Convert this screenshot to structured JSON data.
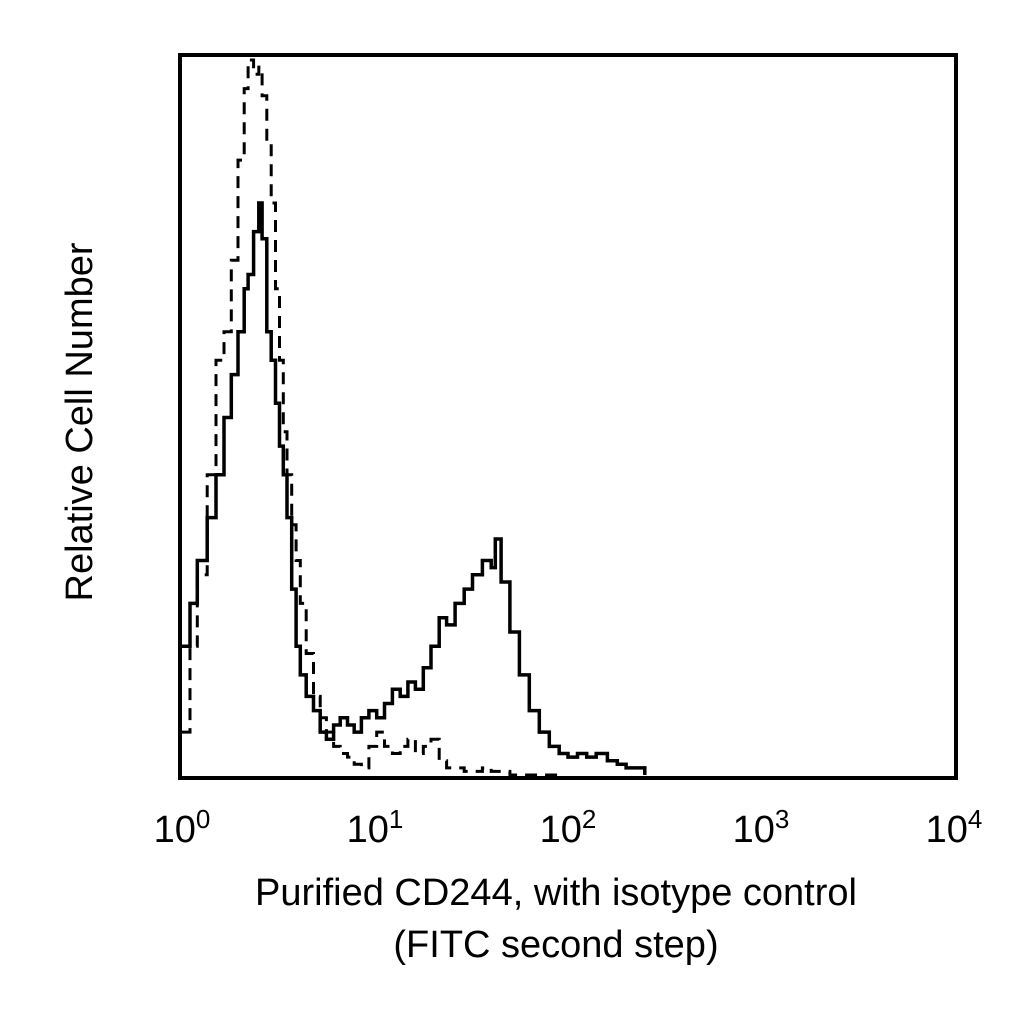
{
  "chart_data": {
    "type": "line",
    "title": "",
    "xlabel_lines": [
      "Purified CD244, with isotype control",
      "(FITC second step)"
    ],
    "ylabel": "Relative Cell Number",
    "x_scale": "log",
    "xlim": [
      1,
      10000
    ],
    "ylim": [
      0,
      100
    ],
    "x_ticks": [
      {
        "base": "10",
        "exp": "0",
        "value": 1
      },
      {
        "base": "10",
        "exp": "1",
        "value": 10
      },
      {
        "base": "10",
        "exp": "2",
        "value": 100
      },
      {
        "base": "10",
        "exp": "3",
        "value": 1000
      },
      {
        "base": "10",
        "exp": "4",
        "value": 10000
      }
    ],
    "y_ticks_shown": false,
    "grid": false,
    "legend": "none",
    "series": [
      {
        "style": "dashed",
        "color": "#000000",
        "x": [
          1.0,
          1.1,
          1.2,
          1.35,
          1.5,
          1.65,
          1.8,
          1.95,
          2.1,
          2.2,
          2.35,
          2.5,
          2.6,
          2.75,
          2.9,
          3.05,
          3.2,
          3.35,
          3.5,
          3.7,
          3.9,
          4.1,
          4.4,
          4.8,
          5.2,
          5.6,
          6.1,
          6.6,
          7.2,
          7.8,
          8.5,
          9.3,
          10.2,
          11.2,
          12.3,
          13.5,
          14.8,
          16.2,
          17.8,
          19.5,
          21.5,
          23.5,
          26,
          29,
          32,
          36,
          40,
          45,
          50,
          56,
          63,
          71,
          80,
          90
        ],
        "y": [
          6,
          18,
          28,
          42,
          58,
          62,
          72,
          86,
          96,
          100,
          98,
          99,
          95,
          88,
          80,
          68,
          58,
          48,
          42,
          35,
          30,
          24,
          17,
          11,
          8,
          6,
          4,
          3,
          2.5,
          1.5,
          1,
          4,
          6,
          4,
          3,
          4,
          5,
          3,
          4,
          5,
          2,
          1,
          1,
          0.5,
          0.5,
          1,
          0.5,
          0.5,
          0,
          0,
          0,
          0,
          0,
          0
        ]
      },
      {
        "style": "solid",
        "color": "#000000",
        "x": [
          1.0,
          1.1,
          1.2,
          1.35,
          1.5,
          1.65,
          1.8,
          1.95,
          2.1,
          2.2,
          2.35,
          2.5,
          2.6,
          2.75,
          2.9,
          3.05,
          3.2,
          3.35,
          3.5,
          3.7,
          3.9,
          4.1,
          4.4,
          4.8,
          5.2,
          5.6,
          6.1,
          6.6,
          7.2,
          7.8,
          8.5,
          9.3,
          10.2,
          11.2,
          12.3,
          13.5,
          14.8,
          16.2,
          17.8,
          19.5,
          21.5,
          23.5,
          26,
          29,
          32,
          36,
          40,
          42,
          45,
          50,
          56,
          63,
          71,
          80,
          90,
          100,
          112,
          125,
          140,
          160,
          180,
          200,
          225,
          250
        ],
        "y": [
          18,
          24,
          30,
          36,
          42,
          50,
          56,
          62,
          68,
          70,
          76,
          80,
          75,
          62,
          58,
          52,
          46,
          42,
          36,
          26,
          18,
          14,
          11,
          9,
          6,
          5,
          7,
          8,
          7,
          6,
          8,
          9,
          8,
          10,
          12,
          11,
          13,
          12,
          15,
          18,
          22,
          21,
          24,
          26,
          28,
          30,
          29,
          33,
          27,
          20,
          14,
          9,
          6,
          4,
          3,
          2.5,
          3,
          2.5,
          3,
          2,
          1.5,
          1,
          1,
          0
        ]
      }
    ]
  }
}
